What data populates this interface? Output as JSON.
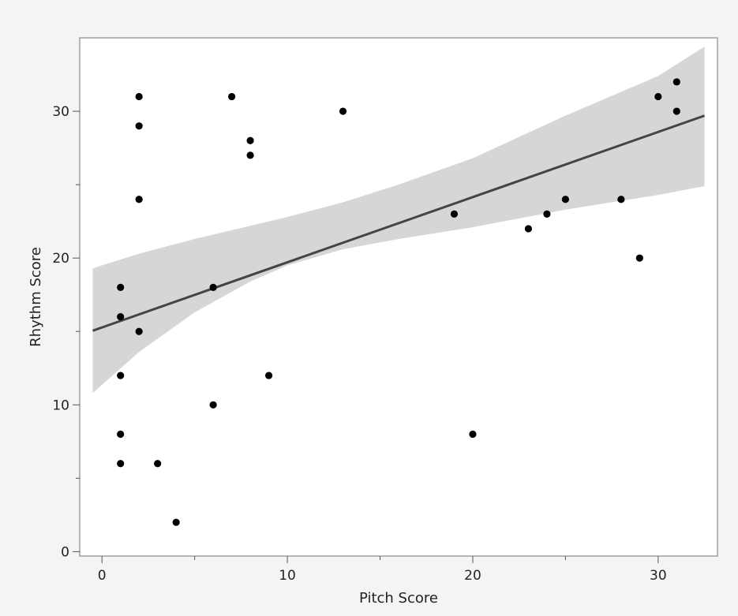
{
  "chart_data": {
    "type": "scatter",
    "title": "",
    "xlabel": "Pitch Score",
    "ylabel": "Rhythm Score",
    "xlim": [
      -1.2,
      33.2
    ],
    "ylim": [
      -0.3,
      35
    ],
    "x_ticks": [
      0,
      10,
      20,
      30
    ],
    "x_minor_ticks": [
      5,
      15,
      25
    ],
    "y_ticks": [
      0,
      10,
      20,
      30
    ],
    "y_minor_ticks": [
      5,
      15,
      25
    ],
    "grid": false,
    "legend": "none",
    "colors": {
      "point": "#000000",
      "fit_line": "#444444",
      "confidence_band": "#d6d6d6",
      "plot_background": "#ffffff",
      "page_background": "#f4f4f4",
      "axis": "#888888"
    },
    "points": [
      {
        "x": 1,
        "y": 6
      },
      {
        "x": 1,
        "y": 8
      },
      {
        "x": 1,
        "y": 12
      },
      {
        "x": 1,
        "y": 16
      },
      {
        "x": 1,
        "y": 18
      },
      {
        "x": 2,
        "y": 15
      },
      {
        "x": 2,
        "y": 24
      },
      {
        "x": 2,
        "y": 29
      },
      {
        "x": 2,
        "y": 31
      },
      {
        "x": 3,
        "y": 6
      },
      {
        "x": 4,
        "y": 2
      },
      {
        "x": 6,
        "y": 10
      },
      {
        "x": 6,
        "y": 18
      },
      {
        "x": 7,
        "y": 31
      },
      {
        "x": 8,
        "y": 27
      },
      {
        "x": 8,
        "y": 28
      },
      {
        "x": 9,
        "y": 12
      },
      {
        "x": 13,
        "y": 30
      },
      {
        "x": 19,
        "y": 23
      },
      {
        "x": 20,
        "y": 8
      },
      {
        "x": 23,
        "y": 22
      },
      {
        "x": 24,
        "y": 23
      },
      {
        "x": 25,
        "y": 24
      },
      {
        "x": 28,
        "y": 24
      },
      {
        "x": 29,
        "y": 20
      },
      {
        "x": 30,
        "y": 31
      },
      {
        "x": 31,
        "y": 30
      },
      {
        "x": 31,
        "y": 32
      }
    ],
    "fit": {
      "type": "linear",
      "x": [
        -0.5,
        32.5
      ],
      "y": [
        15.05,
        29.7
      ]
    },
    "confidence_band": {
      "x": [
        -0.5,
        2,
        5,
        8,
        10,
        13,
        16,
        20,
        25,
        30,
        32.5
      ],
      "lower": [
        10.8,
        13.6,
        16.3,
        18.4,
        19.5,
        20.6,
        21.3,
        22.1,
        23.3,
        24.3,
        24.9
      ],
      "upper": [
        19.3,
        20.3,
        21.3,
        22.2,
        22.8,
        23.8,
        25.0,
        26.8,
        29.7,
        32.4,
        34.4
      ]
    }
  }
}
